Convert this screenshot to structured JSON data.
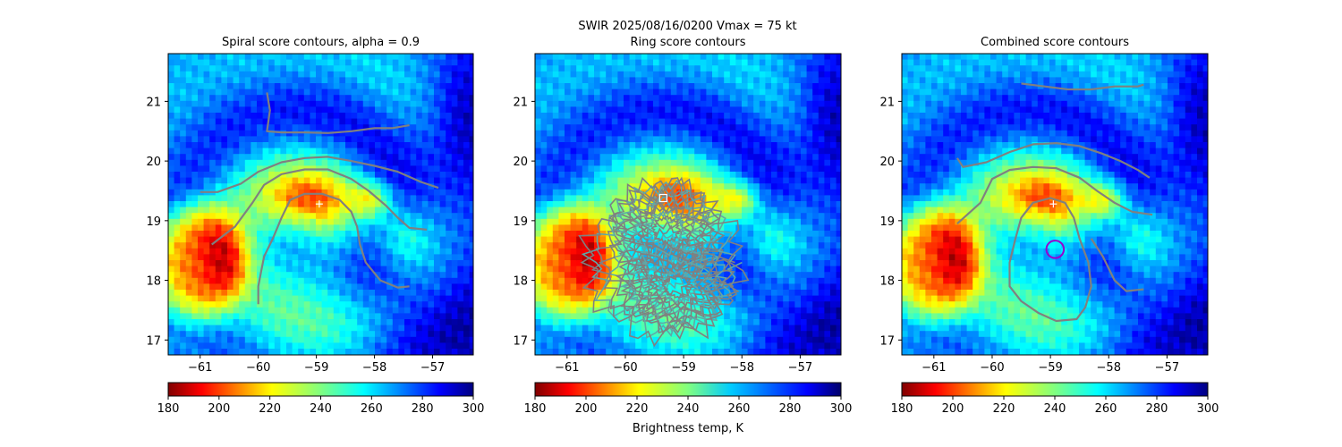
{
  "figure": {
    "suptitle": "SWIR  2025/08/16/0200    Vmax = 75 kt",
    "colorbar_label": "Brightness temp, K"
  },
  "chart_data": [
    {
      "type": "heatmap",
      "title": "Spiral score contours, alpha =  0.9",
      "xlim": [
        -61.55,
        -56.3
      ],
      "ylim": [
        16.75,
        21.8
      ],
      "xticks": [
        -61,
        -60,
        -59,
        -58,
        -57
      ],
      "yticks": [
        17,
        18,
        19,
        20,
        21
      ],
      "xtick_labels": [
        "−61",
        "−60",
        "−59",
        "−58",
        "−57"
      ],
      "ytick_labels": [
        "17",
        "18",
        "19",
        "20",
        "21"
      ],
      "colorbar": {
        "range": [
          180,
          300
        ],
        "ticks": [
          "180",
          "200",
          "220",
          "240",
          "260",
          "280",
          "300"
        ],
        "colormap": "jet_r"
      },
      "center_marker": {
        "symbol": "+",
        "lon": -58.95,
        "lat": 19.28,
        "color": "#ffffff"
      },
      "contour_lines": [
        [
          [
            -61.0,
            19.48
          ],
          [
            -60.7,
            19.48
          ],
          [
            -60.3,
            19.62
          ],
          [
            -60.0,
            19.82
          ],
          [
            -59.6,
            19.98
          ],
          [
            -59.2,
            20.05
          ],
          [
            -58.8,
            20.07
          ],
          [
            -58.4,
            20.0
          ],
          [
            -58.0,
            19.92
          ],
          [
            -57.6,
            19.82
          ],
          [
            -57.2,
            19.65
          ],
          [
            -56.9,
            19.55
          ]
        ],
        [
          [
            -60.8,
            18.6
          ],
          [
            -60.4,
            18.9
          ],
          [
            -60.1,
            19.3
          ],
          [
            -59.9,
            19.6
          ],
          [
            -59.6,
            19.78
          ],
          [
            -59.2,
            19.86
          ],
          [
            -58.8,
            19.86
          ],
          [
            -58.4,
            19.7
          ],
          [
            -58.1,
            19.5
          ],
          [
            -57.8,
            19.25
          ],
          [
            -57.6,
            19.05
          ],
          [
            -57.4,
            18.88
          ],
          [
            -57.1,
            18.85
          ]
        ],
        [
          [
            -59.85,
            21.15
          ],
          [
            -59.8,
            20.85
          ],
          [
            -59.85,
            20.5
          ],
          [
            -59.6,
            20.48
          ],
          [
            -59.2,
            20.48
          ],
          [
            -58.8,
            20.47
          ],
          [
            -58.4,
            20.5
          ],
          [
            -58.0,
            20.55
          ],
          [
            -57.7,
            20.55
          ],
          [
            -57.4,
            20.6
          ]
        ],
        [
          [
            -60.0,
            17.6
          ],
          [
            -60.0,
            17.9
          ],
          [
            -59.95,
            18.15
          ],
          [
            -59.9,
            18.4
          ],
          [
            -59.75,
            18.7
          ],
          [
            -59.6,
            19.05
          ],
          [
            -59.45,
            19.35
          ],
          [
            -59.2,
            19.45
          ],
          [
            -58.9,
            19.45
          ],
          [
            -58.6,
            19.35
          ],
          [
            -58.4,
            19.15
          ],
          [
            -58.3,
            18.9
          ],
          [
            -58.25,
            18.6
          ],
          [
            -58.15,
            18.3
          ],
          [
            -57.9,
            18.0
          ],
          [
            -57.6,
            17.88
          ],
          [
            -57.4,
            17.9
          ]
        ]
      ],
      "ring_contours": [],
      "circle_marker": null,
      "square_marker": null
    },
    {
      "type": "heatmap",
      "title": "Ring score contours",
      "xlim": [
        -61.55,
        -56.3
      ],
      "ylim": [
        16.75,
        21.8
      ],
      "xticks": [
        -61,
        -60,
        -59,
        -58,
        -57
      ],
      "yticks": [
        17,
        18,
        19,
        20,
        21
      ],
      "xtick_labels": [
        "−61",
        "−60",
        "−59",
        "−58",
        "−57"
      ],
      "ytick_labels": [
        "17",
        "18",
        "19",
        "20",
        "21"
      ],
      "colorbar": {
        "range": [
          180,
          300
        ],
        "ticks": [
          "180",
          "200",
          "220",
          "240",
          "260",
          "280",
          "300"
        ],
        "colormap": "jet_r"
      },
      "center_marker": null,
      "contour_lines": [],
      "ring_contours": [
        {
          "center": [
            -59.35,
            18.3
          ],
          "radius_lon": 1.28,
          "radius_lat": 1.22
        },
        {
          "center": [
            -59.3,
            18.85
          ],
          "radius_lon": 0.85,
          "radius_lat": 0.8
        },
        {
          "center": [
            -59.1,
            17.9
          ],
          "radius_lon": 0.9,
          "radius_lat": 0.7
        }
      ],
      "circle_marker": null,
      "square_marker": {
        "lon": -59.35,
        "lat": 19.38,
        "color": "#ffffff"
      }
    },
    {
      "type": "heatmap",
      "title": "Combined score contours",
      "xlim": [
        -61.55,
        -56.3
      ],
      "ylim": [
        16.75,
        21.8
      ],
      "xticks": [
        -61,
        -60,
        -59,
        -58,
        -57
      ],
      "yticks": [
        17,
        18,
        19,
        20,
        21
      ],
      "xtick_labels": [
        "−61",
        "−60",
        "−59",
        "−58",
        "−57"
      ],
      "ytick_labels": [
        "17",
        "18",
        "19",
        "20",
        "21"
      ],
      "colorbar": {
        "range": [
          180,
          300
        ],
        "ticks": [
          "180",
          "200",
          "220",
          "240",
          "260",
          "280",
          "300"
        ],
        "colormap": "jet_r"
      },
      "center_marker": {
        "symbol": "+",
        "lon": -58.95,
        "lat": 19.28,
        "color": "#ffffff"
      },
      "contour_lines": [
        [
          [
            -60.6,
            20.05
          ],
          [
            -60.5,
            19.9
          ],
          [
            -60.1,
            19.98
          ],
          [
            -59.7,
            20.15
          ],
          [
            -59.3,
            20.28
          ],
          [
            -58.9,
            20.3
          ],
          [
            -58.5,
            20.25
          ],
          [
            -58.1,
            20.12
          ],
          [
            -57.8,
            20.0
          ],
          [
            -57.5,
            19.85
          ],
          [
            -57.3,
            19.72
          ]
        ],
        [
          [
            -60.6,
            18.95
          ],
          [
            -60.2,
            19.3
          ],
          [
            -60.0,
            19.7
          ],
          [
            -59.7,
            19.85
          ],
          [
            -59.3,
            19.9
          ],
          [
            -58.9,
            19.88
          ],
          [
            -58.5,
            19.72
          ],
          [
            -58.2,
            19.5
          ],
          [
            -57.9,
            19.3
          ],
          [
            -57.6,
            19.15
          ],
          [
            -57.25,
            19.1
          ]
        ],
        [
          [
            -59.5,
            21.3
          ],
          [
            -59.1,
            21.25
          ],
          [
            -58.7,
            21.2
          ],
          [
            -58.3,
            21.2
          ],
          [
            -57.9,
            21.25
          ],
          [
            -57.5,
            21.25
          ],
          [
            -57.4,
            21.28
          ]
        ],
        [
          [
            -59.6,
            18.7
          ],
          [
            -59.7,
            18.3
          ],
          [
            -59.7,
            17.9
          ],
          [
            -59.5,
            17.65
          ],
          [
            -59.2,
            17.45
          ],
          [
            -58.9,
            17.32
          ],
          [
            -58.55,
            17.35
          ],
          [
            -58.4,
            17.55
          ],
          [
            -58.3,
            17.9
          ],
          [
            -58.35,
            18.3
          ],
          [
            -58.5,
            18.7
          ],
          [
            -58.6,
            19.05
          ],
          [
            -58.75,
            19.3
          ],
          [
            -59.0,
            19.38
          ],
          [
            -59.3,
            19.3
          ],
          [
            -59.5,
            19.05
          ],
          [
            -59.6,
            18.7
          ]
        ],
        [
          [
            -58.3,
            18.7
          ],
          [
            -58.1,
            18.4
          ],
          [
            -57.9,
            18.0
          ],
          [
            -57.7,
            17.82
          ],
          [
            -57.4,
            17.85
          ]
        ]
      ],
      "ring_contours": [],
      "circle_marker": {
        "lon": -58.92,
        "lat": 18.52,
        "radius_lon": 0.15,
        "color": "#9900cc"
      },
      "square_marker": null
    }
  ],
  "colors": {
    "contour": "#808080",
    "ring_contour_alt": "#5fa8a8",
    "axes": "#000000"
  }
}
